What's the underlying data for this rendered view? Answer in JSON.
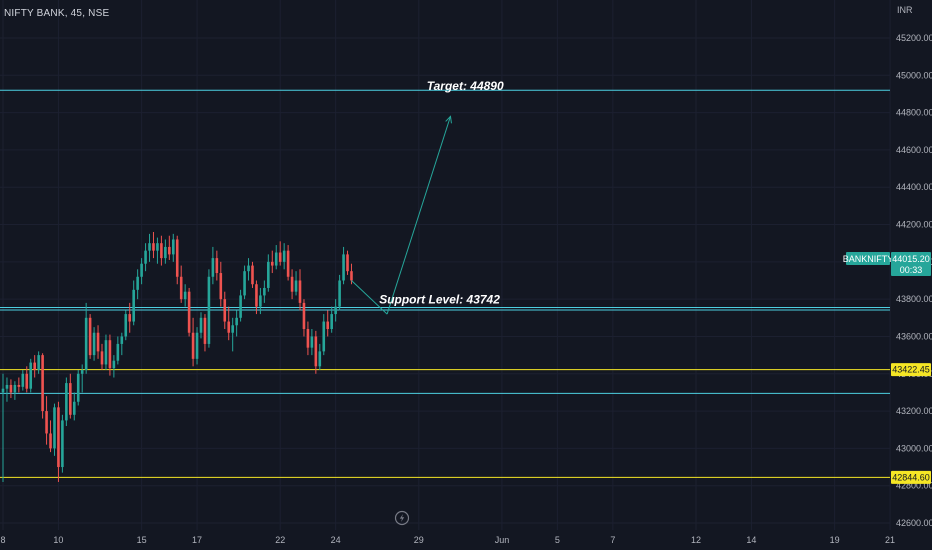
{
  "header": {
    "symbol_title": "NIFTY BANK, 45, NSE"
  },
  "replay_icon": "lightning-icon",
  "colors": {
    "background": "#131722",
    "up": "#26a69a",
    "down": "#ef5350",
    "cyan_line": "#4dd0e1",
    "yellow_line": "#f5e625",
    "arrow": "#26a69a",
    "text": "#b2b5be"
  },
  "chart_data": {
    "type": "candlestick",
    "currency": "INR",
    "ylim": [
      42560,
      45420
    ],
    "y_ticks": [
      42600,
      42800,
      43000,
      43200,
      43400,
      43600,
      43800,
      44000,
      44200,
      44400,
      44600,
      44800,
      45000,
      45200
    ],
    "y_tick_labels": [
      "42600.00",
      "42800.00",
      "43000.00",
      "43200.00",
      "43400.00",
      "43600.00",
      "43800.00",
      "44000.00",
      "44200.00",
      "44400.00",
      "44600.00",
      "44800.00",
      "45000.00",
      "45200.00"
    ],
    "x_ticks": [
      {
        "label": "8",
        "bar": 0
      },
      {
        "label": "10",
        "bar": 14
      },
      {
        "label": "15",
        "bar": 35
      },
      {
        "label": "17",
        "bar": 49
      },
      {
        "label": "22",
        "bar": 70
      },
      {
        "label": "24",
        "bar": 84
      },
      {
        "label": "29",
        "bar": 105
      },
      {
        "label": "Jun",
        "bar": 126
      },
      {
        "label": "5",
        "bar": 140
      },
      {
        "label": "7",
        "bar": 154
      },
      {
        "label": "12",
        "bar": 175
      },
      {
        "label": "14",
        "bar": 189
      },
      {
        "label": "19",
        "bar": 210
      },
      {
        "label": "21",
        "bar": 224
      }
    ],
    "candles": [
      [
        43300,
        43400,
        42820,
        43320
      ],
      [
        43320,
        43380,
        43250,
        43340
      ],
      [
        43340,
        43370,
        43270,
        43300
      ],
      [
        43300,
        43360,
        43260,
        43340
      ],
      [
        43340,
        43380,
        43300,
        43330
      ],
      [
        43330,
        43420,
        43310,
        43400
      ],
      [
        43400,
        43440,
        43300,
        43320
      ],
      [
        43320,
        43480,
        43300,
        43460
      ],
      [
        43460,
        43500,
        43380,
        43420
      ],
      [
        43420,
        43520,
        43400,
        43500
      ],
      [
        43500,
        43510,
        43160,
        43200
      ],
      [
        43200,
        43280,
        43020,
        43080
      ],
      [
        43080,
        43150,
        42980,
        43000
      ],
      [
        43000,
        43240,
        42960,
        43220
      ],
      [
        43220,
        43250,
        42820,
        42900
      ],
      [
        42900,
        43180,
        42870,
        43150
      ],
      [
        43150,
        43380,
        43120,
        43350
      ],
      [
        43350,
        43400,
        43160,
        43180
      ],
      [
        43180,
        43300,
        43150,
        43250
      ],
      [
        43250,
        43420,
        43230,
        43400
      ],
      [
        43400,
        43450,
        43300,
        43420
      ],
      [
        43420,
        43780,
        43400,
        43700
      ],
      [
        43700,
        43720,
        43480,
        43500
      ],
      [
        43500,
        43650,
        43470,
        43620
      ],
      [
        43620,
        43660,
        43480,
        43520
      ],
      [
        43520,
        43560,
        43420,
        43450
      ],
      [
        43450,
        43610,
        43420,
        43580
      ],
      [
        43580,
        43610,
        43390,
        43430
      ],
      [
        43430,
        43500,
        43380,
        43470
      ],
      [
        43470,
        43600,
        43450,
        43560
      ],
      [
        43560,
        43620,
        43500,
        43600
      ],
      [
        43600,
        43740,
        43580,
        43720
      ],
      [
        43720,
        43780,
        43620,
        43680
      ],
      [
        43680,
        43900,
        43660,
        43850
      ],
      [
        43850,
        43960,
        43800,
        43920
      ],
      [
        43920,
        44020,
        43880,
        43990
      ],
      [
        43990,
        44100,
        43950,
        44060
      ],
      [
        44060,
        44150,
        44000,
        44100
      ],
      [
        44100,
        44160,
        44020,
        44060
      ],
      [
        44060,
        44130,
        43990,
        44100
      ],
      [
        44100,
        44140,
        43980,
        44020
      ],
      [
        44020,
        44120,
        43990,
        44080
      ],
      [
        44080,
        44140,
        44010,
        44040
      ],
      [
        44040,
        44150,
        44000,
        44120
      ],
      [
        44120,
        44140,
        43880,
        43920
      ],
      [
        43920,
        43980,
        43780,
        43800
      ],
      [
        43800,
        43880,
        43760,
        43840
      ],
      [
        43840,
        43860,
        43600,
        43620
      ],
      [
        43620,
        43700,
        43440,
        43480
      ],
      [
        43480,
        43650,
        43450,
        43620
      ],
      [
        43620,
        43730,
        43590,
        43700
      ],
      [
        43700,
        43720,
        43520,
        43560
      ],
      [
        43560,
        43960,
        43540,
        43920
      ],
      [
        43920,
        44080,
        43880,
        44020
      ],
      [
        44020,
        44060,
        43900,
        43940
      ],
      [
        43940,
        44000,
        43760,
        43800
      ],
      [
        43800,
        43840,
        43640,
        43680
      ],
      [
        43680,
        43760,
        43580,
        43620
      ],
      [
        43620,
        43700,
        43520,
        43660
      ],
      [
        43660,
        43740,
        43600,
        43700
      ],
      [
        43700,
        43850,
        43680,
        43820
      ],
      [
        43820,
        43980,
        43800,
        43950
      ],
      [
        43950,
        44020,
        43900,
        43980
      ],
      [
        43980,
        44000,
        43860,
        43880
      ],
      [
        43880,
        43900,
        43720,
        43760
      ],
      [
        43760,
        43860,
        43720,
        43820
      ],
      [
        43820,
        43900,
        43780,
        43860
      ],
      [
        43860,
        44040,
        43840,
        44000
      ],
      [
        44000,
        44060,
        43940,
        43980
      ],
      [
        43980,
        44090,
        43960,
        44050
      ],
      [
        44050,
        44110,
        43980,
        44000
      ],
      [
        44000,
        44100,
        43960,
        44060
      ],
      [
        44060,
        44090,
        43900,
        43920
      ],
      [
        43920,
        43960,
        43800,
        43840
      ],
      [
        43840,
        43950,
        43820,
        43900
      ],
      [
        43900,
        43960,
        43740,
        43780
      ],
      [
        43780,
        43800,
        43600,
        43640
      ],
      [
        43640,
        43680,
        43500,
        43540
      ],
      [
        43540,
        43640,
        43500,
        43600
      ],
      [
        43600,
        43630,
        43400,
        43440
      ],
      [
        43440,
        43560,
        43420,
        43520
      ],
      [
        43520,
        43720,
        43500,
        43680
      ],
      [
        43680,
        43740,
        43600,
        43640
      ],
      [
        43640,
        43760,
        43620,
        43720
      ],
      [
        43720,
        43800,
        43680,
        43760
      ],
      [
        43760,
        43930,
        43740,
        43900
      ],
      [
        43900,
        44080,
        43880,
        44040
      ],
      [
        44040,
        44060,
        43930,
        43950
      ],
      [
        43950,
        43990,
        43880,
        43900
      ]
    ],
    "horizontal_lines": [
      {
        "price": 44920,
        "color": "cyan"
      },
      {
        "price": 43755,
        "color": "cyan"
      },
      {
        "price": 43742,
        "color": "cyan"
      },
      {
        "price": 43422.45,
        "color": "yellow",
        "label": "43422.45"
      },
      {
        "price": 43295,
        "color": "cyan"
      },
      {
        "price": 42844.6,
        "color": "yellow",
        "label": "42844.60"
      }
    ],
    "annotations": [
      {
        "text": "Target: 44890",
        "bar": 107,
        "price": 44900
      },
      {
        "text": "Support Level: 43742",
        "bar": 95,
        "price": 43755
      }
    ],
    "arrow": {
      "from_bar": 97,
      "from_price": 43720,
      "to_bar": 113,
      "to_price": 44780
    },
    "last_price": {
      "symbol": "BANKNIFTY",
      "value": "44015.20",
      "countdown": "00:33",
      "price": 44015.2
    }
  }
}
